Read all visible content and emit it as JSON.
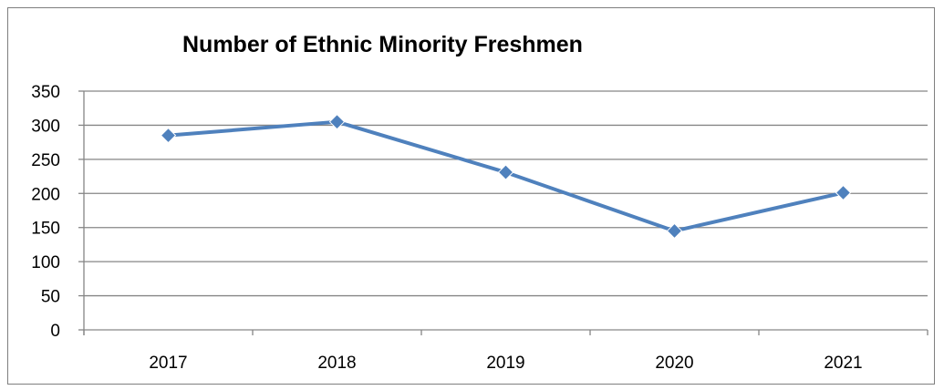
{
  "chart_data": {
    "type": "line",
    "title": "Number of Ethnic Minority Freshmen",
    "xlabel": "",
    "ylabel": "",
    "categories": [
      "2017",
      "2018",
      "2019",
      "2020",
      "2021"
    ],
    "series": [
      {
        "values": [
          285,
          305,
          231,
          145,
          201
        ]
      }
    ],
    "ylim": [
      0,
      350
    ],
    "yticks": [
      "0",
      "50",
      "100",
      "150",
      "200",
      "250",
      "300",
      "350"
    ],
    "grid": true,
    "legend": "none",
    "line_color": "#4f81bd",
    "marker": "diamond"
  }
}
